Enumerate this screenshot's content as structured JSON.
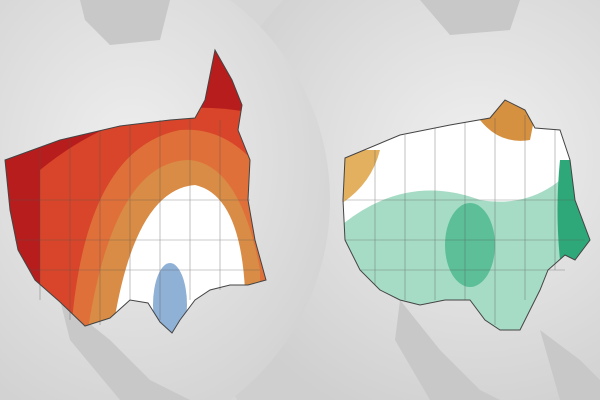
{
  "maps": [
    {
      "id": "left",
      "base_color": "#ffffff",
      "bands": [
        {
          "level": "strongest",
          "color": "#b81d1d"
        },
        {
          "level": "strong",
          "color": "#d8452a"
        },
        {
          "level": "moderate",
          "color": "#e0703a"
        },
        {
          "level": "weak",
          "color": "#d98c45"
        },
        {
          "level": "neutral",
          "color": "#ffffff"
        },
        {
          "level": "opposite",
          "color": "#8fb1d6"
        }
      ]
    },
    {
      "id": "right",
      "base_color": "#ffffff",
      "bands": [
        {
          "level": "weak-warm",
          "color": "#e3b060"
        },
        {
          "level": "moderate-warm",
          "color": "#d59040"
        },
        {
          "level": "neutral",
          "color": "#ffffff"
        },
        {
          "level": "weak",
          "color": "#a6dcc6"
        },
        {
          "level": "strong",
          "color": "#5cbf98"
        },
        {
          "level": "strongest",
          "color": "#2ea879"
        }
      ]
    }
  ],
  "colors": {
    "background": "#d9d9d9",
    "globe": "#e6e6e6",
    "land": "#c9c9c9",
    "border": "#555555"
  }
}
